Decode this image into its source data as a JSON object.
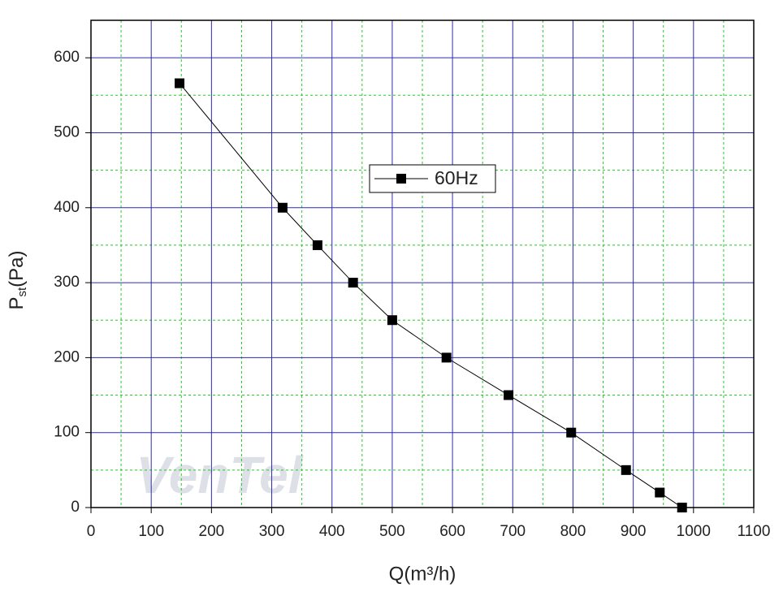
{
  "chart_data": {
    "type": "line",
    "x_label": "Q(m³/h)",
    "y_label": {
      "main": "P",
      "sub": "st",
      "unit": "(Pa)"
    },
    "watermark": "VenTel",
    "series": [
      {
        "name": "60Hz",
        "color": "#000000",
        "marker": "square",
        "x": [
          147,
          318,
          376,
          435,
          500,
          590,
          693,
          797,
          888,
          944,
          981
        ],
        "values": [
          566,
          400,
          350,
          300,
          250,
          200,
          150,
          100,
          50,
          20,
          0
        ]
      }
    ],
    "xlim": [
      0,
      1100
    ],
    "xticks": [
      0,
      100,
      200,
      300,
      400,
      500,
      600,
      700,
      800,
      900,
      1000,
      1100
    ],
    "ylim": [
      0,
      650
    ],
    "yticks": [
      0,
      100,
      200,
      300,
      400,
      500,
      600
    ],
    "grid": true,
    "minor_grid": true,
    "major_grid_color": "#2b2bb0",
    "minor_grid_color": "#22cc22",
    "legend": "upper-center"
  }
}
